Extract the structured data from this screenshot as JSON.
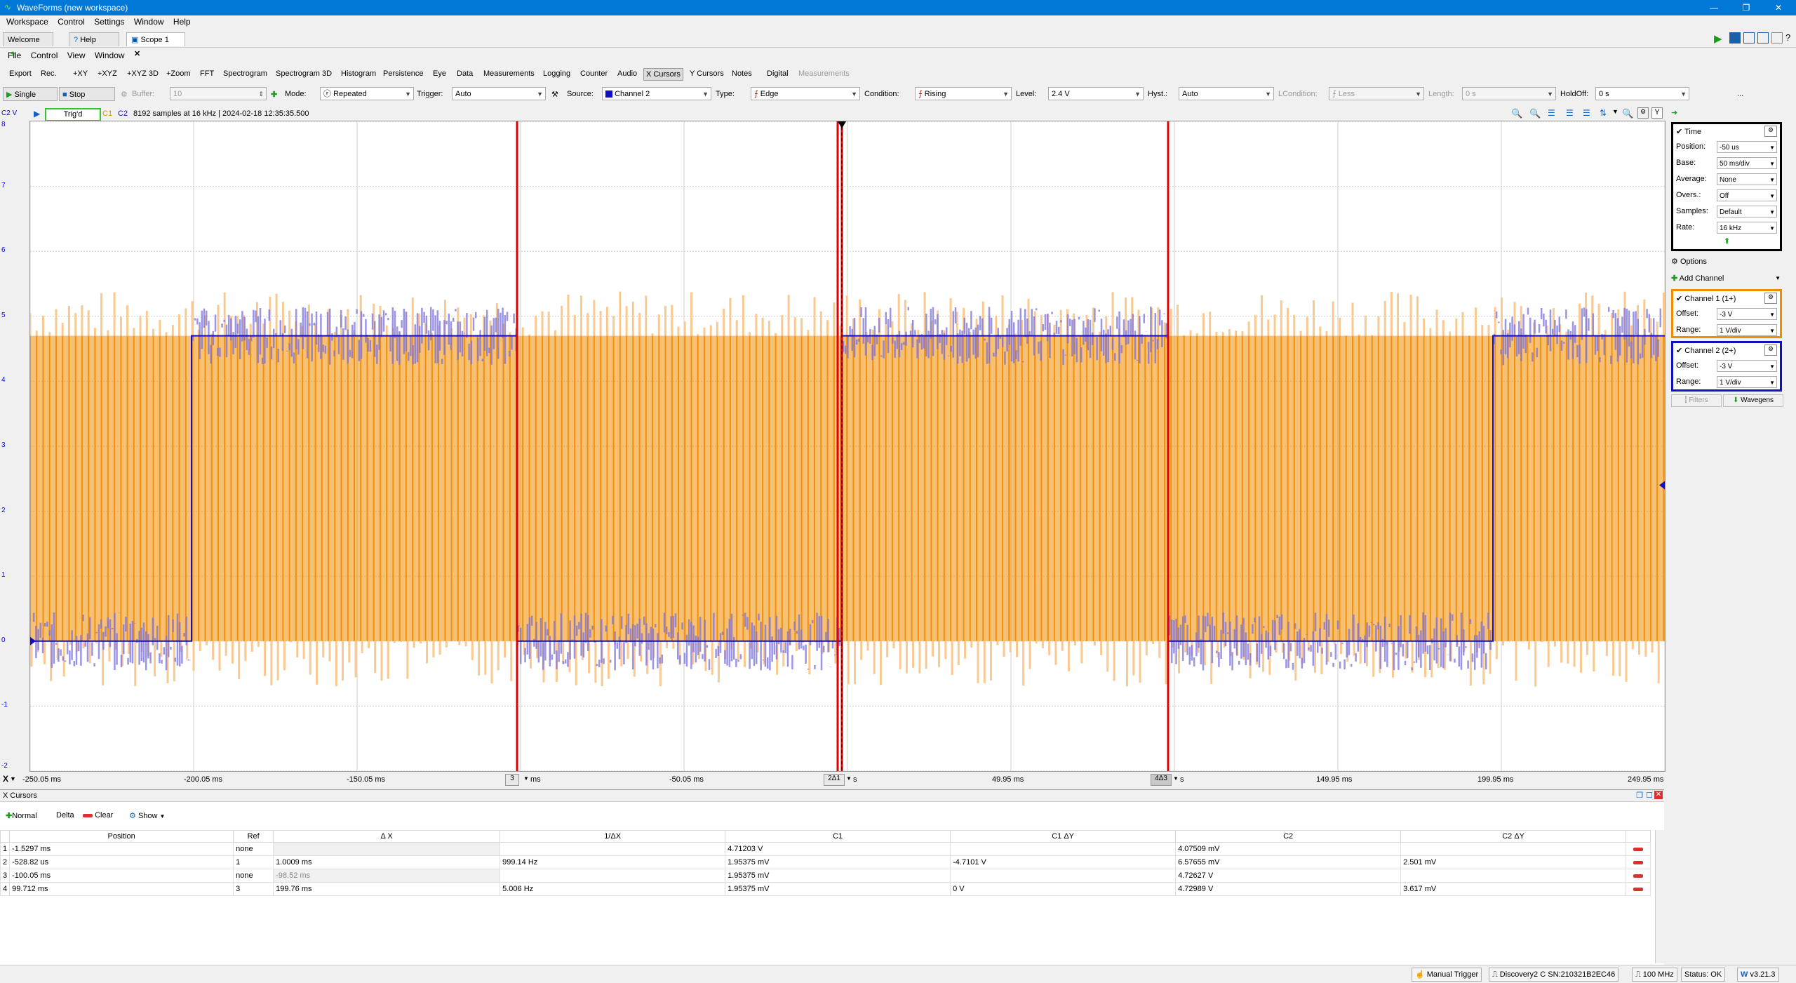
{
  "window": {
    "title": "WaveForms (new workspace)"
  },
  "menu_main": [
    "Workspace",
    "Control",
    "Settings",
    "Window",
    "Help"
  ],
  "tabs": [
    {
      "label": "Welcome"
    },
    {
      "label": "Help"
    },
    {
      "label": "Scope 1"
    }
  ],
  "menu_scope": [
    "File",
    "Control",
    "View",
    "Window"
  ],
  "toolbar1": [
    "Export",
    "Rec.",
    "+XY",
    "+XYZ",
    "+XYZ 3D",
    "+Zoom",
    "FFT",
    "Spectrogram",
    "Spectrogram 3D",
    "Histogram",
    "Persistence",
    "Eye",
    "Data",
    "Measurements",
    "Logging",
    "Counter",
    "Audio",
    "X Cursors",
    "Y Cursors",
    "Notes",
    "Digital",
    "Measurements"
  ],
  "toolbar2": {
    "single": "Single",
    "stop": "Stop",
    "buffer_label": "Buffer:",
    "buffer_value": "10",
    "mode_label": "Mode:",
    "mode_value": "Repeated",
    "trigger_label": "Trigger:",
    "trigger_value": "Auto",
    "source_label": "Source:",
    "source_value": "Channel 2",
    "type_label": "Type:",
    "type_value": "Edge",
    "condition_label": "Condition:",
    "condition_value": "Rising",
    "level_label": "Level:",
    "level_value": "2.4 V",
    "hyst_label": "Hyst.:",
    "hyst_value": "Auto",
    "lcondition_label": "LCondition:",
    "lcondition_value": "Less",
    "length_label": "Length:",
    "length_value": "0 s",
    "holdoff_label": "HoldOff:",
    "holdoff_value": "0 s",
    "more": "..."
  },
  "status": {
    "axis_label": "C2 V",
    "trig": "Trig'd",
    "c1": "C1",
    "c2": "C2",
    "info": "8192 samples at 16 kHz  | 2024-02-18 12:35:35.500",
    "y_button": "Y"
  },
  "y_axis_labels": [
    "8",
    "7",
    "6",
    "5",
    "4",
    "3",
    "2",
    "1",
    "0",
    "-1",
    "-2"
  ],
  "x_axis_labels": [
    "-250.05 ms",
    "-200.05 ms",
    "-150.05 ms",
    "-50.05 ms",
    "49.95 ms",
    "149.95 ms",
    "199.95 ms",
    "249.95 ms"
  ],
  "x_axis_fragments": {
    "x": "X",
    "f1": "3",
    "f1s": "s",
    "f2": "2Δ1",
    "f2s": "s",
    "f3": "4Δ3",
    "f3s": "s",
    "ms": "ms"
  },
  "time": {
    "title": "Time",
    "rows": [
      {
        "label": "Position:",
        "value": "-50 us"
      },
      {
        "label": "Base:",
        "value": "50 ms/div"
      },
      {
        "label": "Average:",
        "value": "None"
      },
      {
        "label": "Overs.:",
        "value": "Off"
      },
      {
        "label": "Samples:",
        "value": "Default"
      },
      {
        "label": "Rate:",
        "value": "16 kHz"
      }
    ]
  },
  "options_label": "Options",
  "add_channel_label": "Add Channel",
  "channel1": {
    "title": "Channel 1 (1+)",
    "offset_label": "Offset:",
    "offset": "-3 V",
    "range_label": "Range:",
    "range": "1 V/div",
    "color": "#f08c00"
  },
  "channel2": {
    "title": "Channel 2 (2+)",
    "offset_label": "Offset:",
    "offset": "-3 V",
    "range_label": "Range:",
    "range": "1 V/div",
    "color": "#1010c0"
  },
  "filters_label": "Filters",
  "wavegens_label": "Wavegens",
  "xcursors": {
    "title": "X Cursors",
    "toolbar": {
      "normal": "Normal",
      "delta": "Delta",
      "clear": "Clear",
      "show": "Show"
    },
    "headers": [
      "Position",
      "Ref",
      "Δ X",
      "1/ΔX",
      "C1",
      "C1 ΔY",
      "C2",
      "C2 ΔY"
    ],
    "rows": [
      {
        "n": "1",
        "position": "-1.5297 ms",
        "ref": "none",
        "dx": "",
        "inv": "",
        "c1": "4.71203 V",
        "c1dy": "",
        "c2": "4.07509 mV",
        "c2dy": ""
      },
      {
        "n": "2",
        "position": "-528.82 us",
        "ref": "1",
        "dx": "1.0009 ms",
        "inv": "999.14 Hz",
        "c1": "1.95375 mV",
        "c1dy": "-4.7101 V",
        "c2": "6.57655 mV",
        "c2dy": "2.501 mV"
      },
      {
        "n": "3",
        "position": "-100.05 ms",
        "ref": "none",
        "dx": "-98.52 ms",
        "inv": "",
        "c1": "1.95375 mV",
        "c1dy": "",
        "c2": "4.72627 V",
        "c2dy": ""
      },
      {
        "n": "4",
        "position": "99.712 ms",
        "ref": "3",
        "dx": "199.76 ms",
        "inv": "5.006 Hz",
        "c1": "1.95375 mV",
        "c1dy": "0 V",
        "c2": "4.72989 V",
        "c2dy": "3.617 mV"
      }
    ]
  },
  "bottom": {
    "manual_trigger": "Manual Trigger",
    "device": "Discovery2 C SN:210321B2EC46",
    "freq": "100 MHz",
    "status": "Status: OK",
    "version": "v3.21.3"
  }
}
